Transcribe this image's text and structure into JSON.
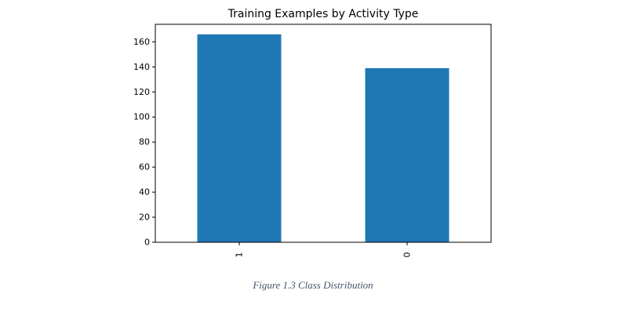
{
  "chart_data": {
    "type": "bar",
    "title": "Training Examples by Activity Type",
    "xlabel": "",
    "ylabel": "",
    "categories": [
      "1",
      "0"
    ],
    "values": [
      166,
      139
    ],
    "ylim": [
      0,
      174
    ],
    "yticks": [
      0,
      20,
      40,
      60,
      80,
      100,
      120,
      140,
      160
    ],
    "xtick_rotation": 90,
    "grid": false,
    "legend": "none",
    "bar_color": "#1f77b4"
  },
  "caption": "Figure 1.3 Class Distribution"
}
